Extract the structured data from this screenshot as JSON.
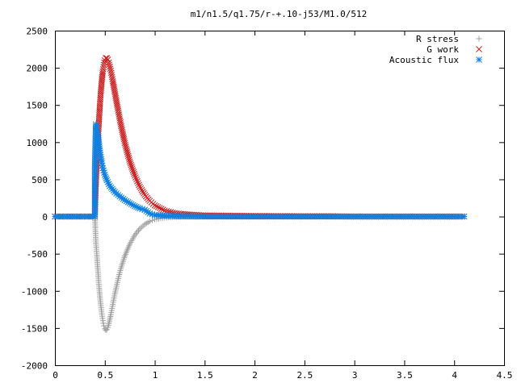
{
  "chart_data": {
    "type": "scatter",
    "title": "m1/n1.5/q1.75/r-+.10-j53/M1.0/512",
    "xlabel": "",
    "ylabel": "",
    "xlim": [
      0,
      4.5
    ],
    "ylim": [
      -2000,
      2500
    ],
    "x_ticks": [
      "0",
      "0.5",
      "1",
      "1.5",
      "2",
      "2.5",
      "3",
      "3.5",
      "4",
      "4.5"
    ],
    "y_ticks": [
      "2500",
      "2000",
      "1500",
      "1000",
      "500",
      "0",
      "-500",
      "-1000",
      "-1500",
      "-2000"
    ],
    "grid": false,
    "legend_position": "top-right",
    "series": [
      {
        "name": "R stress",
        "marker": "plus",
        "color": "#a0a0a0",
        "points": [
          [
            0.0,
            0
          ],
          [
            0.05,
            0
          ],
          [
            0.1,
            0
          ],
          [
            0.15,
            0
          ],
          [
            0.2,
            0
          ],
          [
            0.25,
            0
          ],
          [
            0.3,
            0
          ],
          [
            0.35,
            0
          ],
          [
            0.4,
            0
          ],
          [
            0.41,
            -330
          ],
          [
            0.42,
            -520
          ],
          [
            0.43,
            -720
          ],
          [
            0.44,
            -910
          ],
          [
            0.45,
            -1070
          ],
          [
            0.46,
            -1200
          ],
          [
            0.47,
            -1310
          ],
          [
            0.48,
            -1400
          ],
          [
            0.49,
            -1470
          ],
          [
            0.5,
            -1510
          ],
          [
            0.51,
            -1530
          ],
          [
            0.52,
            -1520
          ],
          [
            0.53,
            -1490
          ],
          [
            0.54,
            -1440
          ],
          [
            0.56,
            -1320
          ],
          [
            0.58,
            -1180
          ],
          [
            0.6,
            -1040
          ],
          [
            0.63,
            -860
          ],
          [
            0.66,
            -700
          ],
          [
            0.7,
            -530
          ],
          [
            0.75,
            -370
          ],
          [
            0.8,
            -250
          ],
          [
            0.85,
            -165
          ],
          [
            0.9,
            -105
          ],
          [
            0.95,
            -65
          ],
          [
            1.0,
            -40
          ],
          [
            1.1,
            -15
          ],
          [
            1.2,
            -5
          ],
          [
            1.5,
            0
          ],
          [
            2.0,
            0
          ],
          [
            2.5,
            0
          ],
          [
            3.0,
            0
          ],
          [
            3.5,
            0
          ],
          [
            4.0,
            0
          ],
          [
            4.1,
            0
          ]
        ]
      },
      {
        "name": "G work",
        "marker": "cross",
        "color": "#c82020",
        "points": [
          [
            0.0,
            0
          ],
          [
            0.1,
            0
          ],
          [
            0.2,
            0
          ],
          [
            0.3,
            0
          ],
          [
            0.4,
            0
          ],
          [
            0.41,
            440
          ],
          [
            0.42,
            730
          ],
          [
            0.43,
            1000
          ],
          [
            0.44,
            1260
          ],
          [
            0.45,
            1490
          ],
          [
            0.46,
            1680
          ],
          [
            0.47,
            1830
          ],
          [
            0.48,
            1950
          ],
          [
            0.49,
            2040
          ],
          [
            0.5,
            2100
          ],
          [
            0.51,
            2130
          ],
          [
            0.52,
            2130
          ],
          [
            0.53,
            2110
          ],
          [
            0.54,
            2070
          ],
          [
            0.56,
            1960
          ],
          [
            0.58,
            1820
          ],
          [
            0.6,
            1670
          ],
          [
            0.63,
            1450
          ],
          [
            0.66,
            1240
          ],
          [
            0.7,
            990
          ],
          [
            0.75,
            740
          ],
          [
            0.8,
            550
          ],
          [
            0.85,
            400
          ],
          [
            0.9,
            290
          ],
          [
            0.95,
            210
          ],
          [
            1.0,
            150
          ],
          [
            1.1,
            80
          ],
          [
            1.2,
            45
          ],
          [
            1.3,
            30
          ],
          [
            1.5,
            15
          ],
          [
            2.0,
            8
          ],
          [
            2.5,
            5
          ],
          [
            2.75,
            5
          ],
          [
            3.0,
            0
          ],
          [
            3.5,
            0
          ],
          [
            4.0,
            0
          ],
          [
            4.1,
            0
          ]
        ]
      },
      {
        "name": "Acoustic flux",
        "marker": "star",
        "color": "#1080e0",
        "points": [
          [
            0.0,
            0
          ],
          [
            0.1,
            0
          ],
          [
            0.2,
            0
          ],
          [
            0.3,
            0
          ],
          [
            0.4,
            0
          ],
          [
            0.4,
            640
          ],
          [
            0.41,
            1240
          ],
          [
            0.42,
            1180
          ],
          [
            0.43,
            1100
          ],
          [
            0.44,
            1000
          ],
          [
            0.45,
            890
          ],
          [
            0.46,
            800
          ],
          [
            0.47,
            720
          ],
          [
            0.48,
            650
          ],
          [
            0.5,
            560
          ],
          [
            0.52,
            490
          ],
          [
            0.55,
            410
          ],
          [
            0.6,
            330
          ],
          [
            0.65,
            270
          ],
          [
            0.7,
            220
          ],
          [
            0.75,
            180
          ],
          [
            0.8,
            140
          ],
          [
            0.85,
            110
          ],
          [
            0.9,
            90
          ],
          [
            0.95,
            40
          ],
          [
            1.0,
            20
          ],
          [
            1.1,
            10
          ],
          [
            1.2,
            5
          ],
          [
            1.5,
            0
          ],
          [
            2.0,
            0
          ],
          [
            2.5,
            0
          ],
          [
            3.0,
            0
          ],
          [
            3.5,
            0
          ],
          [
            4.0,
            0
          ],
          [
            4.1,
            0
          ]
        ]
      }
    ]
  }
}
